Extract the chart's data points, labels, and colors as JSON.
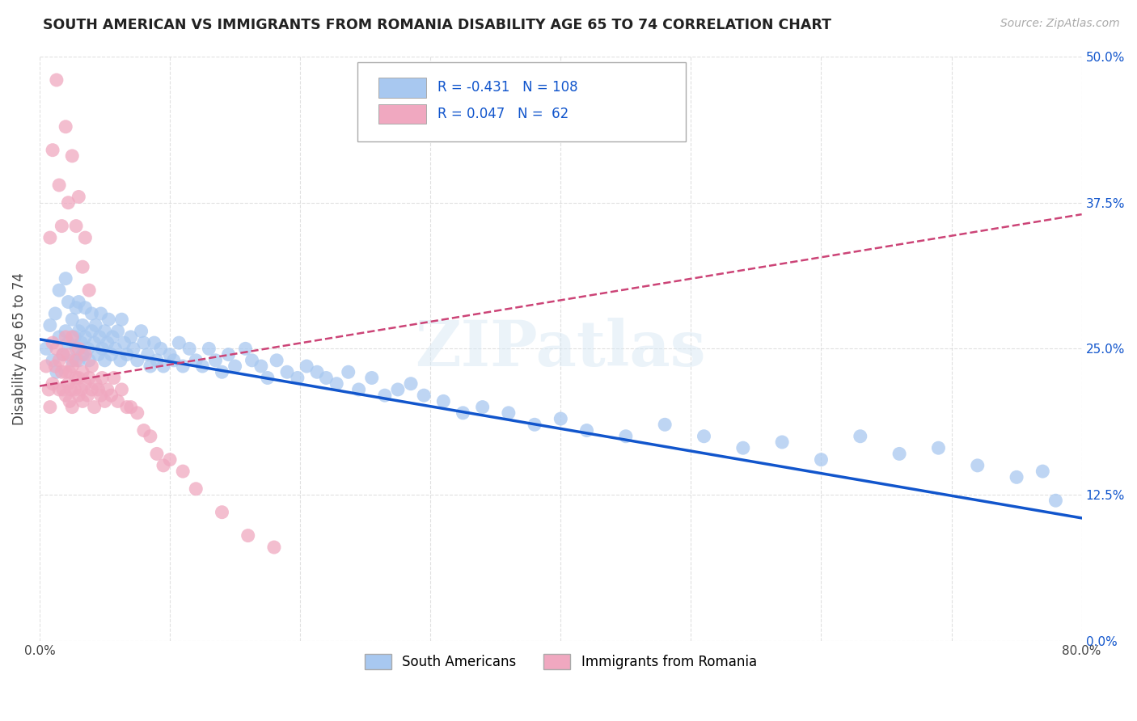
{
  "title": "SOUTH AMERICAN VS IMMIGRANTS FROM ROMANIA DISABILITY AGE 65 TO 74 CORRELATION CHART",
  "source": "Source: ZipAtlas.com",
  "ylabel": "Disability Age 65 to 74",
  "xlim": [
    0,
    0.8
  ],
  "ylim": [
    0,
    0.5
  ],
  "xtick_vals": [
    0.0,
    0.1,
    0.2,
    0.3,
    0.4,
    0.5,
    0.6,
    0.7,
    0.8
  ],
  "xtick_labels": [
    "0.0%",
    "",
    "",
    "",
    "",
    "",
    "",
    "",
    "80.0%"
  ],
  "ytick_vals": [
    0.0,
    0.125,
    0.25,
    0.375,
    0.5
  ],
  "ytick_labels": [
    "0.0%",
    "12.5%",
    "25.0%",
    "37.5%",
    "50.0%"
  ],
  "blue_R": -0.431,
  "blue_N": 108,
  "pink_R": 0.047,
  "pink_N": 62,
  "blue_color": "#a8c8f0",
  "pink_color": "#f0a8c0",
  "blue_line_color": "#1155cc",
  "pink_line_color": "#cc4477",
  "background_color": "#ffffff",
  "grid_color": "#cccccc",
  "watermark": "ZIPatlas",
  "legend_blue_label": "South Americans",
  "legend_pink_label": "Immigrants from Romania",
  "blue_line_x0": 0.0,
  "blue_line_y0": 0.258,
  "blue_line_x1": 0.8,
  "blue_line_y1": 0.105,
  "pink_line_x0": 0.0,
  "pink_line_y0": 0.218,
  "pink_line_x1": 0.8,
  "pink_line_y1": 0.365,
  "blue_scatter_x": [
    0.005,
    0.008,
    0.01,
    0.012,
    0.013,
    0.015,
    0.015,
    0.018,
    0.02,
    0.02,
    0.022,
    0.022,
    0.025,
    0.025,
    0.027,
    0.028,
    0.028,
    0.03,
    0.03,
    0.03,
    0.032,
    0.033,
    0.033,
    0.035,
    0.035,
    0.037,
    0.038,
    0.04,
    0.04,
    0.042,
    0.043,
    0.045,
    0.046,
    0.047,
    0.048,
    0.05,
    0.05,
    0.052,
    0.053,
    0.055,
    0.056,
    0.058,
    0.06,
    0.062,
    0.063,
    0.065,
    0.067,
    0.07,
    0.072,
    0.075,
    0.078,
    0.08,
    0.083,
    0.085,
    0.088,
    0.09,
    0.093,
    0.095,
    0.1,
    0.103,
    0.107,
    0.11,
    0.115,
    0.12,
    0.125,
    0.13,
    0.135,
    0.14,
    0.145,
    0.15,
    0.158,
    0.163,
    0.17,
    0.175,
    0.182,
    0.19,
    0.198,
    0.205,
    0.213,
    0.22,
    0.228,
    0.237,
    0.245,
    0.255,
    0.265,
    0.275,
    0.285,
    0.295,
    0.31,
    0.325,
    0.34,
    0.36,
    0.38,
    0.4,
    0.42,
    0.45,
    0.48,
    0.51,
    0.54,
    0.57,
    0.6,
    0.63,
    0.66,
    0.69,
    0.72,
    0.75,
    0.77,
    0.78
  ],
  "blue_scatter_y": [
    0.25,
    0.27,
    0.24,
    0.28,
    0.23,
    0.26,
    0.3,
    0.245,
    0.265,
    0.31,
    0.255,
    0.29,
    0.24,
    0.275,
    0.26,
    0.285,
    0.25,
    0.265,
    0.24,
    0.29,
    0.255,
    0.27,
    0.245,
    0.26,
    0.285,
    0.25,
    0.24,
    0.265,
    0.28,
    0.255,
    0.27,
    0.245,
    0.26,
    0.28,
    0.25,
    0.265,
    0.24,
    0.255,
    0.275,
    0.245,
    0.26,
    0.25,
    0.265,
    0.24,
    0.275,
    0.255,
    0.245,
    0.26,
    0.25,
    0.24,
    0.265,
    0.255,
    0.245,
    0.235,
    0.255,
    0.24,
    0.25,
    0.235,
    0.245,
    0.24,
    0.255,
    0.235,
    0.25,
    0.24,
    0.235,
    0.25,
    0.24,
    0.23,
    0.245,
    0.235,
    0.25,
    0.24,
    0.235,
    0.225,
    0.24,
    0.23,
    0.225,
    0.235,
    0.23,
    0.225,
    0.22,
    0.23,
    0.215,
    0.225,
    0.21,
    0.215,
    0.22,
    0.21,
    0.205,
    0.195,
    0.2,
    0.195,
    0.185,
    0.19,
    0.18,
    0.175,
    0.185,
    0.175,
    0.165,
    0.17,
    0.155,
    0.175,
    0.16,
    0.165,
    0.15,
    0.14,
    0.145,
    0.12
  ],
  "pink_scatter_x": [
    0.005,
    0.007,
    0.008,
    0.01,
    0.01,
    0.012,
    0.013,
    0.015,
    0.015,
    0.017,
    0.018,
    0.018,
    0.02,
    0.02,
    0.02,
    0.022,
    0.022,
    0.023,
    0.023,
    0.024,
    0.025,
    0.025,
    0.025,
    0.027,
    0.028,
    0.028,
    0.03,
    0.03,
    0.03,
    0.032,
    0.033,
    0.033,
    0.035,
    0.035,
    0.037,
    0.038,
    0.04,
    0.04,
    0.042,
    0.043,
    0.045,
    0.047,
    0.048,
    0.05,
    0.052,
    0.055,
    0.057,
    0.06,
    0.063,
    0.067,
    0.07,
    0.075,
    0.08,
    0.085,
    0.09,
    0.095,
    0.1,
    0.11,
    0.12,
    0.14,
    0.16,
    0.18
  ],
  "pink_scatter_y": [
    0.235,
    0.215,
    0.2,
    0.22,
    0.255,
    0.235,
    0.25,
    0.215,
    0.24,
    0.23,
    0.215,
    0.245,
    0.21,
    0.23,
    0.26,
    0.22,
    0.245,
    0.205,
    0.23,
    0.215,
    0.2,
    0.235,
    0.26,
    0.215,
    0.225,
    0.24,
    0.21,
    0.225,
    0.25,
    0.215,
    0.23,
    0.205,
    0.22,
    0.245,
    0.21,
    0.225,
    0.215,
    0.235,
    0.2,
    0.22,
    0.215,
    0.21,
    0.225,
    0.205,
    0.215,
    0.21,
    0.225,
    0.205,
    0.215,
    0.2,
    0.2,
    0.195,
    0.18,
    0.175,
    0.16,
    0.15,
    0.155,
    0.145,
    0.13,
    0.11,
    0.09,
    0.08
  ],
  "pink_outlier_x": [
    0.008,
    0.01,
    0.013,
    0.015,
    0.017,
    0.02,
    0.022,
    0.025,
    0.028,
    0.03,
    0.033,
    0.035,
    0.038
  ],
  "pink_outlier_y": [
    0.345,
    0.42,
    0.48,
    0.39,
    0.355,
    0.44,
    0.375,
    0.415,
    0.355,
    0.38,
    0.32,
    0.345,
    0.3
  ]
}
